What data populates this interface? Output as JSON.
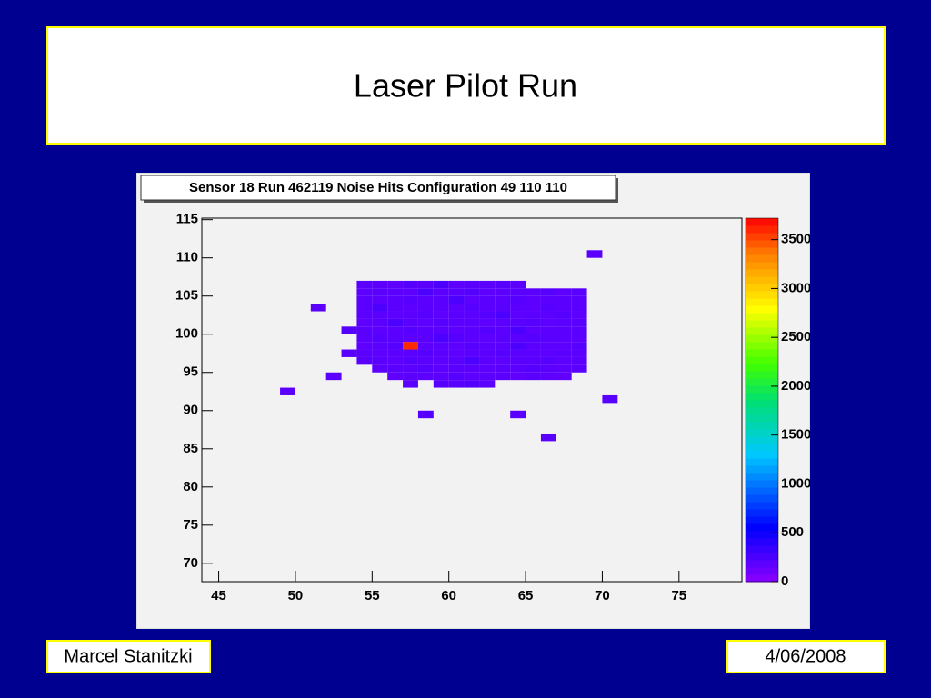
{
  "slide": {
    "title": "Laser Pilot Run",
    "author": "Marcel Stanitzki",
    "date": "4/06/2008"
  },
  "chart_data": {
    "type": "heatmap",
    "title": "Sensor 18 Run 462119 Noise Hits Configuration 49 110 110",
    "xbins": [
      54,
      55,
      56,
      57,
      58,
      59,
      60,
      61,
      62,
      63,
      64,
      65,
      66,
      67,
      68,
      69
    ],
    "ybins": [
      93,
      94,
      95,
      96,
      97,
      98,
      99,
      100,
      101,
      102,
      103,
      104,
      105,
      106,
      107
    ],
    "z": [
      [
        null,
        null,
        null,
        190,
        null,
        210,
        200,
        220,
        190,
        null,
        null,
        null,
        null,
        null,
        null
      ],
      [
        null,
        null,
        170,
        200,
        180,
        190,
        210,
        180,
        200,
        190,
        170,
        200,
        180,
        160,
        null
      ],
      [
        null,
        180,
        200,
        190,
        210,
        180,
        200,
        190,
        180,
        200,
        190,
        210,
        190,
        180,
        200
      ],
      [
        190,
        200,
        180,
        210,
        190,
        180,
        200,
        250,
        190,
        180,
        200,
        190,
        210,
        180,
        190
      ],
      [
        200,
        180,
        190,
        200,
        210,
        190,
        180,
        200,
        190,
        210,
        200,
        190,
        180,
        200,
        190
      ],
      [
        180,
        200,
        210,
        3600,
        190,
        200,
        180,
        210,
        200,
        190,
        250,
        190,
        200,
        180,
        210
      ],
      [
        190,
        210,
        200,
        180,
        190,
        250,
        210,
        190,
        180,
        200,
        190,
        210,
        200,
        190,
        180
      ],
      [
        200,
        180,
        190,
        210,
        200,
        190,
        180,
        200,
        210,
        190,
        250,
        180,
        190,
        200,
        190
      ],
      [
        180,
        190,
        250,
        200,
        180,
        210,
        190,
        200,
        180,
        190,
        200,
        210,
        180,
        190,
        200
      ],
      [
        190,
        200,
        180,
        190,
        210,
        180,
        200,
        190,
        210,
        250,
        180,
        190,
        200,
        210,
        180
      ],
      [
        200,
        250,
        190,
        180,
        200,
        190,
        180,
        210,
        190,
        200,
        190,
        180,
        210,
        190,
        200
      ],
      [
        190,
        180,
        200,
        210,
        190,
        200,
        250,
        180,
        200,
        190,
        210,
        180,
        190,
        200,
        190
      ],
      [
        180,
        200,
        190,
        180,
        250,
        190,
        200,
        210,
        180,
        190,
        200,
        190,
        210,
        180,
        200
      ],
      [
        200,
        190,
        180,
        210,
        190,
        250,
        180,
        200,
        190,
        210,
        190,
        null,
        null,
        null,
        null
      ]
    ],
    "cells": {
      "x": [
        69,
        51,
        53,
        53,
        52,
        49,
        58,
        64,
        66,
        70
      ],
      "y": [
        110,
        103,
        100,
        97,
        94,
        92,
        89,
        89,
        86,
        91
      ],
      "values": [
        200,
        190,
        210,
        200,
        190,
        200,
        210,
        200,
        190,
        200
      ]
    },
    "xlim": [
      43.9,
      79.1
    ],
    "xticks": [
      45,
      50,
      55,
      60,
      65,
      70,
      75
    ],
    "ylim": [
      67.6,
      115.2
    ],
    "yticks": [
      70,
      75,
      80,
      85,
      90,
      95,
      100,
      105,
      110,
      115
    ],
    "zlim": [
      0,
      3720
    ],
    "zticks": [
      0,
      500,
      1000,
      1500,
      2000,
      2500,
      3000,
      3500
    ]
  }
}
